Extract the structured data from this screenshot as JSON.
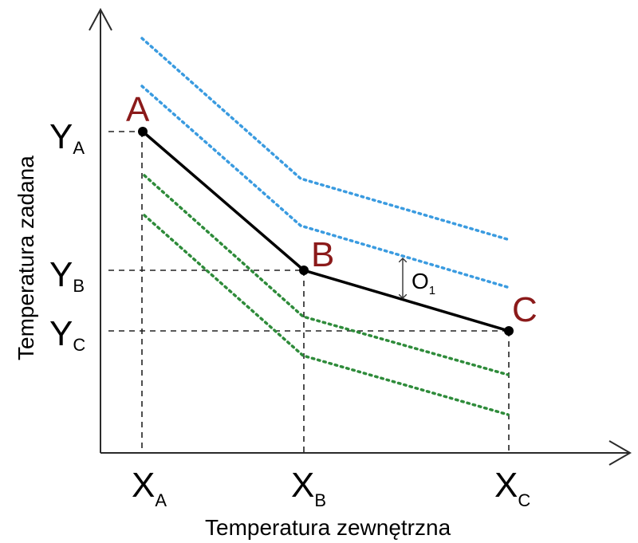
{
  "colors": {
    "point_label": "#8b1a1a",
    "upper_offsets": "#3a9be0",
    "lower_offsets": "#2e8b3a",
    "main_curve": "#000000"
  },
  "points": {
    "A": {
      "label": "A"
    },
    "B": {
      "label": "B"
    },
    "C": {
      "label": "C"
    }
  },
  "x_ticks": {
    "A": {
      "main": "X",
      "sub": "A"
    },
    "B": {
      "main": "X",
      "sub": "B"
    },
    "C": {
      "main": "X",
      "sub": "C"
    }
  },
  "y_ticks": {
    "A": {
      "main": "Y",
      "sub": "A"
    },
    "B": {
      "main": "Y",
      "sub": "B"
    },
    "C": {
      "main": "Y",
      "sub": "C"
    }
  },
  "x_axis_title": "Temperatura zewnętrzna",
  "y_axis_title": "Temperatura zadana",
  "offset": {
    "main": "O",
    "sub": "1"
  }
}
